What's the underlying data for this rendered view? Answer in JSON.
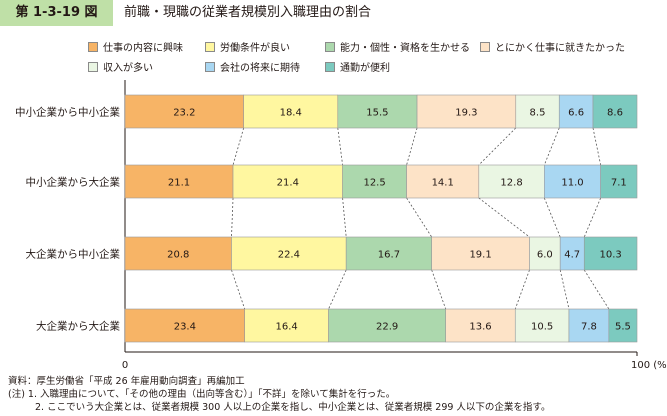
{
  "header": {
    "figure_label": "第 1-3-19 図",
    "title": "前職・現職の従業者規模別入職理由の割合"
  },
  "notes": {
    "source": "資料：厚生労働省「平成 26 年雇用動向調査」再編加工",
    "note1": "(注) 1. 入職理由について、「その他の理由（出向等含む）」「不詳」を除いて集計を行った。",
    "note2": "2. ここでいう大企業とは、従業者規模 300 人以上の企業を指し、中小企業とは、従業者規模 299 人以下の企業を指す。"
  },
  "chart_data": {
    "type": "bar",
    "orientation": "horizontal",
    "stacked": true,
    "normalized_percent": true,
    "categories": [
      "中小企業から中小企業",
      "中小企業から大企業",
      "大企業から中小企業",
      "大企業から大企業"
    ],
    "series": [
      {
        "name": "仕事の内容に興味",
        "color": "#f7b466",
        "values": [
          23.2,
          21.1,
          20.8,
          23.4
        ]
      },
      {
        "name": "労働条件が良い",
        "color": "#fff7a0",
        "values": [
          18.4,
          21.4,
          22.4,
          16.4
        ]
      },
      {
        "name": "能力・個性・資格を生かせる",
        "color": "#acd8ad",
        "values": [
          15.5,
          12.5,
          16.7,
          22.9
        ]
      },
      {
        "name": "とにかく仕事に就きたかった",
        "color": "#fde3c7",
        "values": [
          19.3,
          14.1,
          19.1,
          13.6
        ]
      },
      {
        "name": "収入が多い",
        "color": "#eaf6e3",
        "values": [
          8.5,
          12.8,
          6.0,
          10.5
        ]
      },
      {
        "name": "会社の将来に期待",
        "color": "#a9d7f2",
        "values": [
          6.6,
          11.0,
          4.7,
          7.8
        ]
      },
      {
        "name": "通勤が便利",
        "color": "#7ccabf",
        "values": [
          8.6,
          7.1,
          10.3,
          5.5
        ]
      }
    ],
    "value_labels": [
      [
        "23.2",
        "18.4",
        "15.5",
        "19.3",
        "8.5",
        "6.6",
        "8.6"
      ],
      [
        "21.1",
        "21.4",
        "12.5",
        "14.1",
        "12.8",
        "11.0",
        "7.1"
      ],
      [
        "20.8",
        "22.4",
        "16.7",
        "19.1",
        "6.0",
        "4.7",
        "10.3"
      ],
      [
        "23.4",
        "16.4",
        "22.9",
        "13.6",
        "10.5",
        "7.8",
        "5.5"
      ]
    ],
    "xlim": [
      0,
      100
    ],
    "x_tick_labels": {
      "min": "0",
      "max": "100 (%)"
    },
    "legend_position": "top",
    "connector_lines": "dashed"
  }
}
